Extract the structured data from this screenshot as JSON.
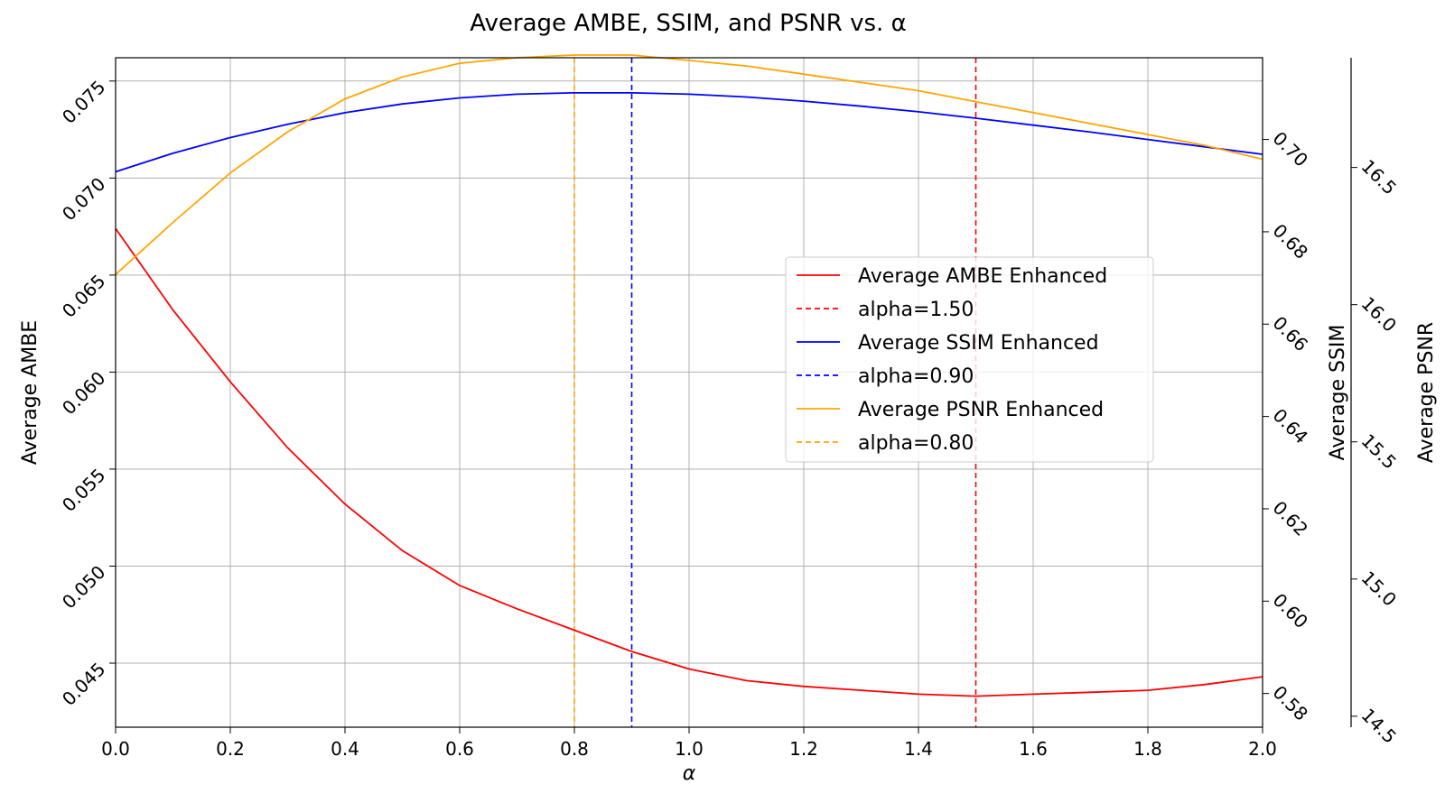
{
  "chart_data": {
    "type": "line",
    "title": "Average AMBE, SSIM, and PSNR vs. α",
    "xlabel": "α",
    "xlim": [
      0.0,
      2.0
    ],
    "x_ticks": [
      "0.0",
      "0.2",
      "0.4",
      "0.6",
      "0.8",
      "1.0",
      "1.2",
      "1.4",
      "1.6",
      "1.8",
      "2.0"
    ],
    "x": [
      0.0,
      0.1,
      0.2,
      0.3,
      0.4,
      0.5,
      0.6,
      0.7,
      0.8,
      0.9,
      1.0,
      1.1,
      1.2,
      1.3,
      1.4,
      1.5,
      1.6,
      1.7,
      1.8,
      1.9,
      2.0
    ],
    "grid": true,
    "legend_position": "center-right",
    "axes": {
      "ambe": {
        "label": "Average AMBE",
        "lim": [
          0.0417,
          0.0762
        ],
        "ticks": [
          "0.045",
          "0.050",
          "0.055",
          "0.060",
          "0.065",
          "0.070",
          "0.075"
        ]
      },
      "ssim": {
        "label": "Average SSIM",
        "lim": [
          0.5727,
          0.7177
        ],
        "ticks": [
          "0.58",
          "0.60",
          "0.62",
          "0.64",
          "0.66",
          "0.68",
          "0.70"
        ]
      },
      "psnr": {
        "label": "Average PSNR",
        "lim": [
          14.46,
          16.9
        ],
        "ticks": [
          "14.5",
          "15.0",
          "15.5",
          "16.0",
          "16.5"
        ]
      }
    },
    "series": [
      {
        "name": "Average AMBE Enhanced",
        "axis": "ambe",
        "color": "#ff0000",
        "values": [
          0.0674,
          0.0632,
          0.0595,
          0.0561,
          0.0532,
          0.0508,
          0.049,
          0.0478,
          0.0467,
          0.0456,
          0.0447,
          0.0441,
          0.0438,
          0.0436,
          0.0434,
          0.0433,
          0.0434,
          0.0435,
          0.0436,
          0.0439,
          0.0443
        ]
      },
      {
        "name": "Average SSIM Enhanced",
        "axis": "ssim",
        "color": "#0000ff",
        "values": [
          0.693,
          0.697,
          0.7004,
          0.7033,
          0.7058,
          0.7077,
          0.709,
          0.7098,
          0.7101,
          0.7101,
          0.7098,
          0.7092,
          0.7083,
          0.7072,
          0.706,
          0.7046,
          0.7031,
          0.7016,
          0.7,
          0.6984,
          0.6968
        ]
      },
      {
        "name": "Average PSNR Enhanced",
        "axis": "psnr",
        "color": "#ffa500",
        "values": [
          16.11,
          16.3,
          16.48,
          16.63,
          16.75,
          16.83,
          16.88,
          16.9,
          16.91,
          16.91,
          16.89,
          16.87,
          16.84,
          16.81,
          16.78,
          16.74,
          16.7,
          16.66,
          16.62,
          16.58,
          16.53
        ]
      }
    ],
    "vlines": [
      {
        "name": "alpha=1.50",
        "x": 1.5,
        "color": "#ff0000",
        "style": "dashed"
      },
      {
        "name": "alpha=0.90",
        "x": 0.9,
        "color": "#0000ff",
        "style": "dashed"
      },
      {
        "name": "alpha=0.80",
        "x": 0.8,
        "color": "#ffa500",
        "style": "dashed"
      }
    ],
    "legend": [
      {
        "label": "Average AMBE Enhanced",
        "color": "#ff0000",
        "style": "solid"
      },
      {
        "label": "alpha=1.50",
        "color": "#ff0000",
        "style": "dashed"
      },
      {
        "label": "Average SSIM Enhanced",
        "color": "#0000ff",
        "style": "solid"
      },
      {
        "label": "alpha=0.90",
        "color": "#0000ff",
        "style": "dashed"
      },
      {
        "label": "Average PSNR Enhanced",
        "color": "#ffa500",
        "style": "solid"
      },
      {
        "label": "alpha=0.80",
        "color": "#ffa500",
        "style": "dashed"
      }
    ]
  }
}
